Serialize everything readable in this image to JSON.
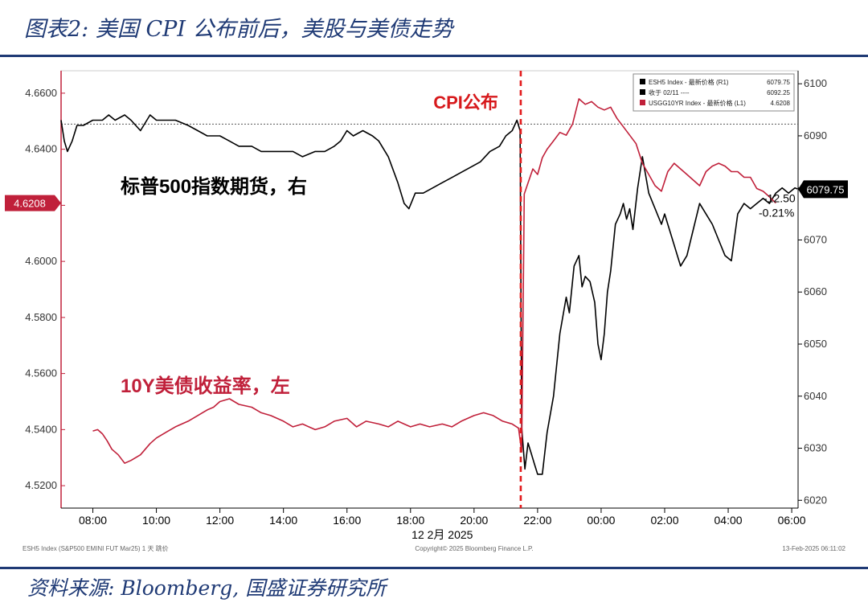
{
  "header": {
    "title": "图表2: 美国 CPI 公布前后，美股与美债走势"
  },
  "footer": {
    "source": "资料来源: Bloomberg, 国盛证券研究所"
  },
  "chart_data": {
    "type": "line",
    "x_ticks": [
      "08:00",
      "10:00",
      "12:00",
      "14:00",
      "16:00",
      "18:00",
      "20:00",
      "22:00",
      "00:00",
      "02:00",
      "04:00",
      "06:00"
    ],
    "x_date_label": "12 2月 2025",
    "y_left": {
      "ticks": [
        "4.6600",
        "4.6400",
        "4.6200",
        "4.6000",
        "4.5800",
        "4.5600",
        "4.5400",
        "4.5200"
      ],
      "range": [
        4.512,
        4.668
      ],
      "current_label": "4.6208"
    },
    "y_right": {
      "ticks": [
        "6100",
        "6090",
        "6080",
        "6070",
        "6060",
        "6050",
        "6040",
        "6030",
        "6020"
      ],
      "range": [
        6018.5,
        6102.5
      ],
      "current_label": "6079.75"
    },
    "annotations": {
      "cpi": "CPI公布",
      "sp500": "标普500指数期货，右",
      "ust10y": "10Y美债收益率，左",
      "change_abs": "-12.50",
      "change_pct": "-0.21%"
    },
    "legend": {
      "placement": "top-right",
      "rows": [
        {
          "label": "ESH5 Index - 最新价格 (R1)",
          "value": "6079.75",
          "color": "#000000"
        },
        {
          "label": "收于 02/11 ----",
          "value": "6092.25",
          "color": "#000000"
        },
        {
          "label": "USGG10YR Index - 最新价格 (L1)",
          "value": "4.6208",
          "color": "#c0203a"
        }
      ]
    },
    "reference_line": {
      "name": "收于 02/11",
      "value": 6092.25
    },
    "cpi_release_x": 21.47,
    "bottom_notes": {
      "left": "ESH5 Index (S&P500 EMINI FUT Mar25) 1 天 跳价",
      "center": "Copyright© 2025 Bloomberg Finance L.P.",
      "right": "13-Feb-2025 06:11:02"
    },
    "series": [
      {
        "name": "ESH5 Index",
        "axis": "right",
        "color": "#000000",
        "x": [
          7.0,
          7.1,
          7.2,
          7.35,
          7.5,
          7.7,
          8.0,
          8.3,
          8.5,
          8.7,
          9.0,
          9.2,
          9.5,
          9.8,
          10.0,
          10.3,
          10.6,
          11.0,
          11.3,
          11.6,
          12.0,
          12.3,
          12.6,
          13.0,
          13.3,
          13.6,
          14.0,
          14.3,
          14.6,
          15.0,
          15.3,
          15.6,
          15.8,
          16.0,
          16.2,
          16.5,
          16.8,
          17.0,
          17.3,
          17.6,
          17.8,
          17.95,
          18.15,
          18.4,
          18.7,
          19.0,
          19.3,
          19.6,
          19.9,
          20.2,
          20.5,
          20.8,
          21.0,
          21.2,
          21.35,
          21.45,
          21.5,
          21.6,
          21.7,
          21.8,
          21.9,
          22.0,
          22.15,
          22.3,
          22.5,
          22.7,
          22.9,
          23.0,
          23.15,
          23.3,
          23.4,
          23.5,
          23.65,
          23.8,
          23.9,
          24.0,
          24.1,
          24.2,
          24.3,
          24.45,
          24.6,
          24.7,
          24.8,
          24.9,
          25.0,
          25.15,
          25.3,
          25.5,
          25.7,
          25.9,
          26.0,
          26.1,
          26.25,
          26.4,
          26.5,
          26.7,
          26.9,
          27.1,
          27.3,
          27.5,
          27.7,
          27.9,
          28.1,
          28.3,
          28.5,
          28.7,
          28.9,
          29.1,
          29.3,
          29.5,
          29.7,
          29.9,
          30.1,
          30.2
        ],
        "values": [
          6093,
          6089,
          6087,
          6089,
          6092,
          6092,
          6093,
          6093,
          6094,
          6093,
          6094,
          6093,
          6091,
          6094,
          6093,
          6093,
          6093,
          6092,
          6091,
          6090,
          6090,
          6089,
          6088,
          6088,
          6087,
          6087,
          6087,
          6087,
          6086,
          6087,
          6087,
          6088,
          6089,
          6091,
          6090,
          6091,
          6090,
          6089,
          6086,
          6081,
          6077,
          6076,
          6079,
          6079,
          6080,
          6081,
          6082,
          6083,
          6084,
          6085,
          6087,
          6088,
          6090,
          6091,
          6093,
          6091,
          6034,
          6026,
          6031,
          6029,
          6027,
          6025,
          6025,
          6033,
          6040,
          6052,
          6059,
          6056,
          6065,
          6067,
          6061,
          6063,
          6062,
          6058,
          6050,
          6047,
          6052,
          6060,
          6064,
          6073,
          6075,
          6077,
          6074,
          6076,
          6072,
          6080,
          6086,
          6079,
          6076,
          6073,
          6075,
          6073,
          6070,
          6067,
          6065,
          6067,
          6072,
          6077,
          6075,
          6073,
          6070,
          6067,
          6066,
          6075,
          6077,
          6076,
          6077,
          6078,
          6077,
          6079,
          6080,
          6079,
          6080,
          6079.75
        ]
      },
      {
        "name": "USGG10YR Index",
        "axis": "left",
        "color": "#c0203a",
        "x": [
          8.0,
          8.15,
          8.3,
          8.45,
          8.6,
          8.8,
          9.0,
          9.2,
          9.5,
          9.8,
          10.0,
          10.3,
          10.6,
          11.0,
          11.3,
          11.6,
          11.8,
          12.0,
          12.3,
          12.6,
          13.0,
          13.3,
          13.6,
          14.0,
          14.3,
          14.6,
          15.0,
          15.3,
          15.6,
          16.0,
          16.3,
          16.6,
          17.0,
          17.3,
          17.6,
          18.0,
          18.3,
          18.6,
          19.0,
          19.3,
          19.6,
          20.0,
          20.3,
          20.6,
          20.9,
          21.2,
          21.4,
          21.5,
          21.58,
          21.7,
          21.85,
          22.0,
          22.15,
          22.3,
          22.5,
          22.7,
          22.9,
          23.1,
          23.3,
          23.5,
          23.7,
          23.9,
          24.1,
          24.3,
          24.5,
          24.7,
          24.9,
          25.1,
          25.3,
          25.5,
          25.7,
          25.9,
          26.1,
          26.3,
          26.5,
          26.7,
          26.9,
          27.1,
          27.3,
          27.5,
          27.7,
          27.9,
          28.1,
          28.3,
          28.5,
          28.7,
          28.9,
          29.1,
          29.3,
          29.5
        ],
        "values": [
          4.5395,
          4.54,
          4.5385,
          4.536,
          4.533,
          4.531,
          4.528,
          4.529,
          4.531,
          4.535,
          4.537,
          4.539,
          4.541,
          4.543,
          4.545,
          4.547,
          4.548,
          4.55,
          4.551,
          4.549,
          4.548,
          4.546,
          4.545,
          4.543,
          4.541,
          4.542,
          4.54,
          4.541,
          4.543,
          4.544,
          4.541,
          4.543,
          4.542,
          4.541,
          4.543,
          4.541,
          4.542,
          4.541,
          4.542,
          4.541,
          4.543,
          4.545,
          4.546,
          4.545,
          4.543,
          4.542,
          4.5405,
          4.532,
          4.624,
          4.628,
          4.633,
          4.631,
          4.637,
          4.64,
          4.643,
          4.646,
          4.645,
          4.649,
          4.658,
          4.656,
          4.657,
          4.655,
          4.654,
          4.655,
          4.651,
          4.648,
          4.645,
          4.642,
          4.635,
          4.631,
          4.627,
          4.625,
          4.632,
          4.635,
          4.633,
          4.631,
          4.629,
          4.627,
          4.632,
          4.634,
          4.635,
          4.634,
          4.632,
          4.632,
          4.63,
          4.63,
          4.626,
          4.625,
          4.623,
          4.6208
        ]
      }
    ]
  }
}
